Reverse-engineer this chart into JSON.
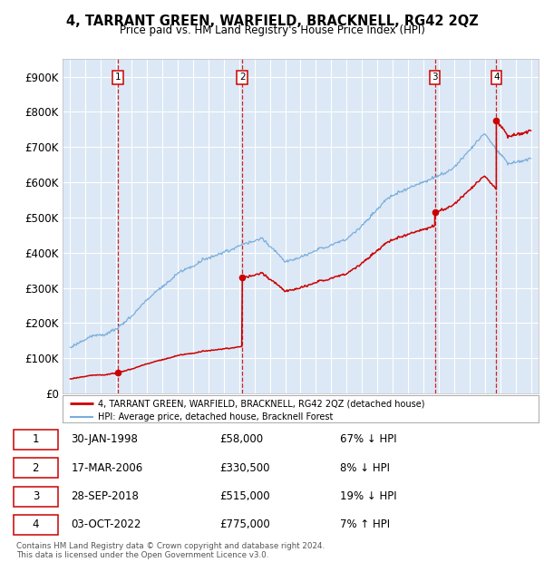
{
  "title": "4, TARRANT GREEN, WARFIELD, BRACKNELL, RG42 2QZ",
  "subtitle": "Price paid vs. HM Land Registry's House Price Index (HPI)",
  "ylim": [
    0,
    950000
  ],
  "yticks": [
    0,
    100000,
    200000,
    300000,
    400000,
    500000,
    600000,
    700000,
    800000,
    900000
  ],
  "ytick_labels": [
    "£0",
    "£100K",
    "£200K",
    "£300K",
    "£400K",
    "£500K",
    "£600K",
    "£700K",
    "£800K",
    "£900K"
  ],
  "bg_color": "#dce8f5",
  "grid_color": "#ffffff",
  "sale_color": "#cc0000",
  "hpi_color": "#7aaedc",
  "transactions": [
    {
      "date_num": 1998.08,
      "price": 58000,
      "label": "1",
      "date_str": "30-JAN-1998",
      "price_str": "£58,000",
      "hpi_pct": "67% ↓ HPI"
    },
    {
      "date_num": 2006.21,
      "price": 330500,
      "label": "2",
      "date_str": "17-MAR-2006",
      "price_str": "£330,500",
      "hpi_pct": "8% ↓ HPI"
    },
    {
      "date_num": 2018.74,
      "price": 515000,
      "label": "3",
      "date_str": "28-SEP-2018",
      "price_str": "£515,000",
      "hpi_pct": "19% ↓ HPI"
    },
    {
      "date_num": 2022.75,
      "price": 775000,
      "label": "4",
      "date_str": "03-OCT-2022",
      "price_str": "£775,000",
      "hpi_pct": "7% ↑ HPI"
    }
  ],
  "legend_sale_label": "4, TARRANT GREEN, WARFIELD, BRACKNELL, RG42 2QZ (detached house)",
  "legend_hpi_label": "HPI: Average price, detached house, Bracknell Forest",
  "footer": "Contains HM Land Registry data © Crown copyright and database right 2024.\nThis data is licensed under the Open Government Licence v3.0.",
  "table_rows": [
    [
      "1",
      "30-JAN-1998",
      "£58,000",
      "67% ↓ HPI"
    ],
    [
      "2",
      "17-MAR-2006",
      "£330,500",
      "8% ↓ HPI"
    ],
    [
      "3",
      "28-SEP-2018",
      "£515,000",
      "19% ↓ HPI"
    ],
    [
      "4",
      "03-OCT-2022",
      "£775,000",
      "7% ↑ HPI"
    ]
  ]
}
